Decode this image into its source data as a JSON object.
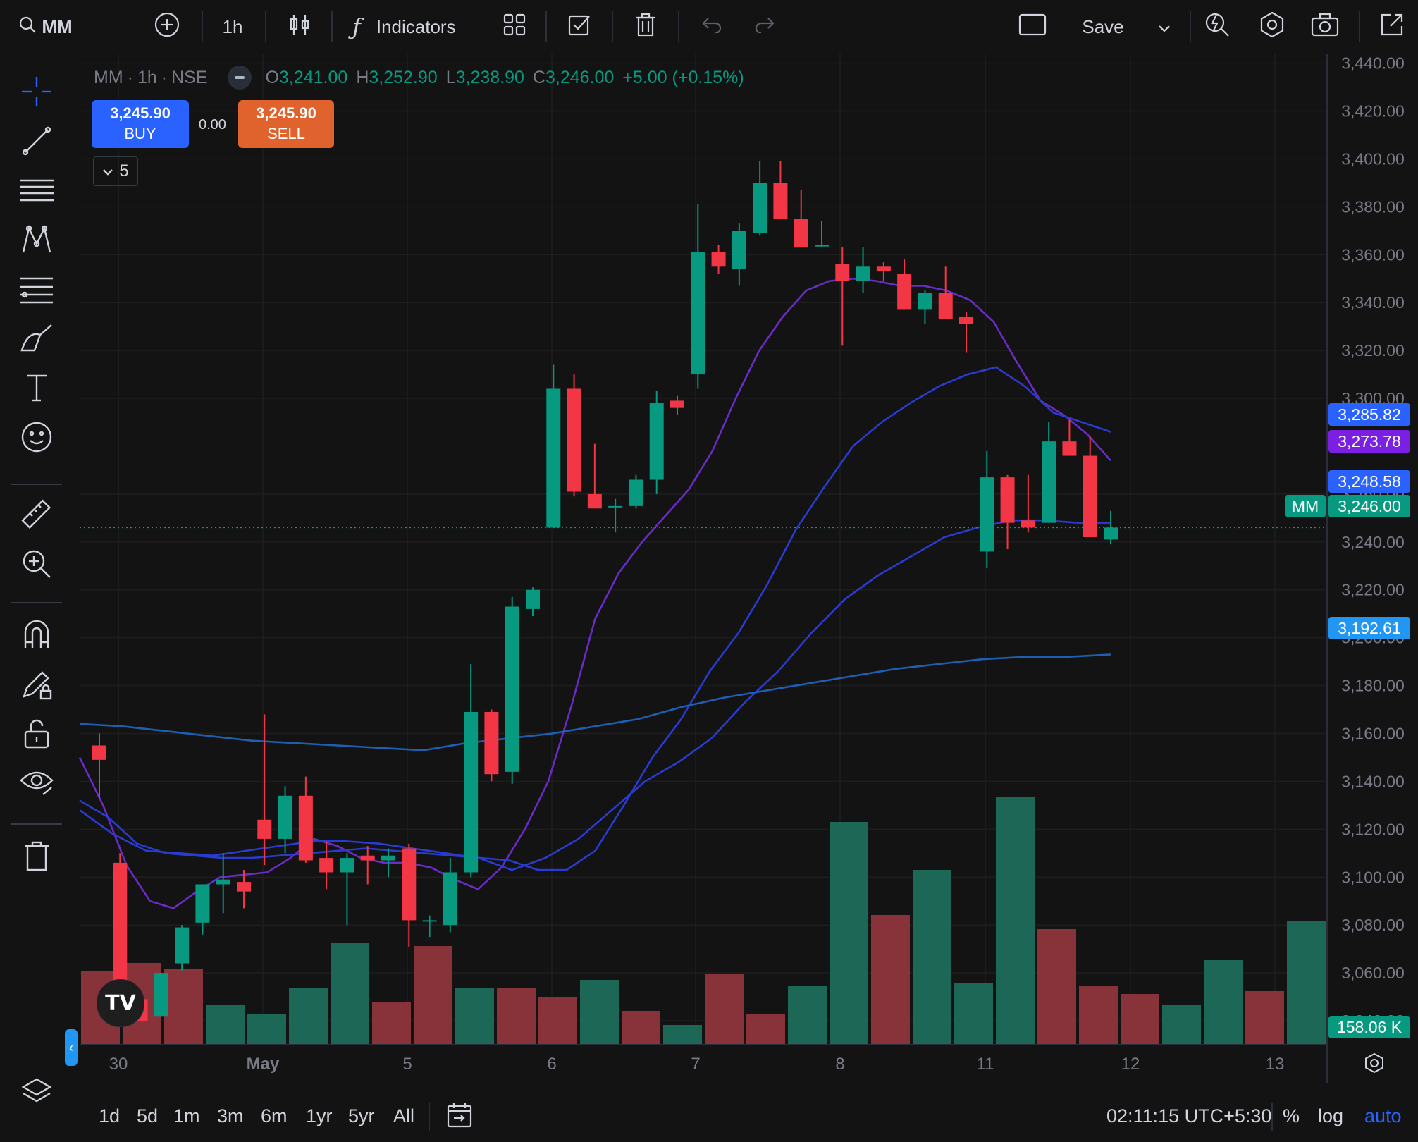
{
  "toolbar": {
    "symbol": "MM",
    "interval": "1h",
    "indicators_label": "Indicators",
    "save_label": "Save"
  },
  "legend": {
    "symbol": "MM",
    "interval": "1h",
    "exchange": "NSE",
    "dot": "·",
    "o_label": "O",
    "o_value": "3,241.00",
    "h_label": "H",
    "h_value": "3,252.90",
    "l_label": "L",
    "l_value": "3,238.90",
    "c_label": "C",
    "c_value": "3,246.00",
    "change": "+5.00 (+0.15%)",
    "indicator_count": "5"
  },
  "trade": {
    "buy_price": "3,245.90",
    "buy_label": "BUY",
    "spread": "0.00",
    "sell_price": "3,245.90",
    "sell_label": "SELL"
  },
  "price_axis": {
    "ticks": [
      "3,440.00",
      "3,420.00",
      "3,400.00",
      "3,380.00",
      "3,360.00",
      "3,340.00",
      "3,320.00",
      "3,300.00",
      "3,260.00",
      "3,240.00",
      "3,220.00",
      "3,200.00",
      "3,180.00",
      "3,160.00",
      "3,140.00",
      "3,120.00",
      "3,100.00",
      "3,080.00",
      "3,060.00",
      "3,040.00"
    ],
    "badges": [
      {
        "value": "3,285.82",
        "color": "#2962ff"
      },
      {
        "value": "3,273.78",
        "color": "#7b1fe2"
      },
      {
        "value": "3,248.58",
        "color": "#2962ff"
      },
      {
        "value": "3,246.00",
        "color": "#089981",
        "symbol": "MM"
      },
      {
        "value": "3,192.61",
        "color": "#2196f3"
      },
      {
        "value": "158.06 K",
        "color": "#089981"
      }
    ]
  },
  "time_axis": {
    "labels": [
      "30",
      "May",
      "5",
      "6",
      "7",
      "8",
      "11",
      "12",
      "13"
    ]
  },
  "bottom": {
    "ranges": [
      "1d",
      "5d",
      "1m",
      "3m",
      "6m",
      "1yr",
      "5yr",
      "All"
    ],
    "clock": "02:11:15 UTC+5:30",
    "percent": "%",
    "log": "log",
    "auto": "auto"
  },
  "colors": {
    "up": "#089981",
    "down": "#f23645",
    "background": "#131313",
    "grid": "#1e1e1e",
    "ma_purple": "#6a2bc8",
    "ma_blue": "#2a3bd0",
    "ma_lightblue": "#1e5fb3",
    "accent": "#2962ff"
  },
  "chart_data": {
    "type": "candlestick",
    "symbol": "MM",
    "interval": "1h",
    "ylim": [
      3030,
      3444
    ],
    "candles": [
      {
        "o": 3155,
        "h": 3160,
        "l": 3133,
        "c": 3149
      },
      {
        "o": 3106,
        "h": 3110,
        "l": 3049,
        "c": 3049
      },
      {
        "o": 3049,
        "h": 3051,
        "l": 3040,
        "c": 3040
      },
      {
        "o": 3042,
        "h": 3060,
        "l": 3042,
        "c": 3060
      },
      {
        "o": 3064,
        "h": 3080,
        "l": 3061,
        "c": 3079
      },
      {
        "o": 3081,
        "h": 3097,
        "l": 3076,
        "c": 3097
      },
      {
        "o": 3097,
        "h": 3110,
        "l": 3085,
        "c": 3099
      },
      {
        "o": 3098,
        "h": 3103,
        "l": 3087,
        "c": 3094
      },
      {
        "o": 3124,
        "h": 3168,
        "l": 3105,
        "c": 3116
      },
      {
        "o": 3116,
        "h": 3138,
        "l": 3110,
        "c": 3134
      },
      {
        "o": 3134,
        "h": 3142,
        "l": 3106,
        "c": 3107
      },
      {
        "o": 3108,
        "h": 3115,
        "l": 3095,
        "c": 3102
      },
      {
        "o": 3102,
        "h": 3110,
        "l": 3080,
        "c": 3108
      },
      {
        "o": 3109,
        "h": 3113,
        "l": 3097,
        "c": 3107
      },
      {
        "o": 3107,
        "h": 3112,
        "l": 3100,
        "c": 3109
      },
      {
        "o": 3112,
        "h": 3114,
        "l": 3071,
        "c": 3082
      },
      {
        "o": 3082,
        "h": 3084,
        "l": 3075,
        "c": 3082
      },
      {
        "o": 3080,
        "h": 3108,
        "l": 3077,
        "c": 3102
      },
      {
        "o": 3102,
        "h": 3189,
        "l": 3100,
        "c": 3169
      },
      {
        "o": 3169,
        "h": 3170,
        "l": 3140,
        "c": 3143
      },
      {
        "o": 3144,
        "h": 3217,
        "l": 3139,
        "c": 3213
      },
      {
        "o": 3212,
        "h": 3221,
        "l": 3209,
        "c": 3220
      },
      {
        "o": 3246,
        "h": 3314,
        "l": 3246,
        "c": 3304
      },
      {
        "o": 3304,
        "h": 3310,
        "l": 3259,
        "c": 3261
      },
      {
        "o": 3260,
        "h": 3281,
        "l": 3254,
        "c": 3254
      },
      {
        "o": 3255,
        "h": 3258,
        "l": 3244,
        "c": 3255
      },
      {
        "o": 3255,
        "h": 3268,
        "l": 3254,
        "c": 3266
      },
      {
        "o": 3266,
        "h": 3303,
        "l": 3260,
        "c": 3298
      },
      {
        "o": 3299,
        "h": 3301,
        "l": 3293,
        "c": 3296
      },
      {
        "o": 3310,
        "h": 3381,
        "l": 3304,
        "c": 3361
      },
      {
        "o": 3361,
        "h": 3364,
        "l": 3352,
        "c": 3355
      },
      {
        "o": 3354,
        "h": 3373,
        "l": 3347,
        "c": 3370
      },
      {
        "o": 3369,
        "h": 3399,
        "l": 3368,
        "c": 3390
      },
      {
        "o": 3390,
        "h": 3399,
        "l": 3375,
        "c": 3375
      },
      {
        "o": 3375,
        "h": 3387,
        "l": 3363,
        "c": 3363
      },
      {
        "o": 3364,
        "h": 3374,
        "l": 3363,
        "c": 3364
      },
      {
        "o": 3356,
        "h": 3363,
        "l": 3322,
        "c": 3349
      },
      {
        "o": 3349,
        "h": 3363,
        "l": 3344,
        "c": 3355
      },
      {
        "o": 3355,
        "h": 3357,
        "l": 3349,
        "c": 3353
      },
      {
        "o": 3352,
        "h": 3358,
        "l": 3337,
        "c": 3337
      },
      {
        "o": 3337,
        "h": 3345,
        "l": 3331,
        "c": 3344
      },
      {
        "o": 3344,
        "h": 3355,
        "l": 3333,
        "c": 3333
      },
      {
        "o": 3334,
        "h": 3336,
        "l": 3319,
        "c": 3331
      },
      {
        "o": 3236,
        "h": 3278,
        "l": 3229,
        "c": 3267
      },
      {
        "o": 3267,
        "h": 3268,
        "l": 3237,
        "c": 3248
      },
      {
        "o": 3249,
        "h": 3268,
        "l": 3244,
        "c": 3246
      },
      {
        "o": 3248,
        "h": 3290,
        "l": 3248,
        "c": 3282
      },
      {
        "o": 3282,
        "h": 3291,
        "l": 3276,
        "c": 3276
      },
      {
        "o": 3276,
        "h": 3284,
        "l": 3242,
        "c": 3242
      },
      {
        "o": 3241,
        "h": 3253,
        "l": 3239,
        "c": 3246
      }
    ],
    "moving_averages": [
      {
        "color": "#6a2bc8",
        "values": [
          3150,
          3130,
          3105,
          3090,
          3087,
          3094,
          3100,
          3101,
          3102,
          3108,
          3116,
          3113,
          3108,
          3106,
          3106,
          3104,
          3099,
          3095,
          3104,
          3120,
          3140,
          3172,
          3208,
          3227,
          3240,
          3251,
          3262,
          3278,
          3300,
          3320,
          3334,
          3345,
          3349,
          3350,
          3349,
          3347,
          3347,
          3345,
          3341,
          3332,
          3315,
          3299,
          3293,
          3285,
          3274
        ]
      },
      {
        "color": "#2a3bd0",
        "values": [
          3132,
          3125,
          3114,
          3110,
          3109,
          3108,
          3108,
          3109,
          3110,
          3111,
          3112,
          3111,
          3110,
          3109,
          3108,
          3107,
          3103,
          3103,
          3111,
          3130,
          3150,
          3166,
          3186,
          3202,
          3222,
          3245,
          3263,
          3280,
          3290,
          3298,
          3305,
          3310,
          3313,
          3305,
          3294,
          3290,
          3286
        ]
      },
      {
        "color": "#2a3bd0",
        "values": [
          3128,
          3118,
          3111,
          3110,
          3109,
          3111,
          3113,
          3115,
          3115,
          3114,
          3112,
          3110,
          3108,
          3103,
          3108,
          3116,
          3128,
          3140,
          3148,
          3158,
          3173,
          3186,
          3202,
          3216,
          3226,
          3234,
          3242,
          3246,
          3249,
          3249,
          3248,
          3248
        ]
      },
      {
        "color": "#1e5fb3",
        "values": [
          3164,
          3163,
          3161,
          3159,
          3157,
          3156,
          3155,
          3154,
          3153,
          3156,
          3158,
          3160,
          3163,
          3166,
          3171,
          3175,
          3178,
          3181,
          3184,
          3187,
          3189,
          3191,
          3192,
          3192,
          3193
        ]
      }
    ],
    "volume": {
      "values": [
        26,
        29,
        27,
        14,
        11,
        20,
        36,
        15,
        35,
        20,
        20,
        17,
        23,
        12,
        7,
        25,
        11,
        21,
        79,
        46,
        62,
        22,
        88,
        41,
        21,
        18,
        14,
        30,
        19,
        44
      ],
      "colors": [
        "d",
        "d",
        "d",
        "u",
        "u",
        "u",
        "u",
        "d",
        "d",
        "u",
        "d",
        "d",
        "u",
        "d",
        "u",
        "d",
        "d",
        "u",
        "u",
        "d",
        "u",
        "u",
        "u",
        "d",
        "d",
        "d",
        "u",
        "u",
        "d",
        "u"
      ]
    },
    "x_labels": [
      "30",
      "May",
      "5",
      "6",
      "7",
      "8",
      "11",
      "12",
      "13"
    ]
  }
}
